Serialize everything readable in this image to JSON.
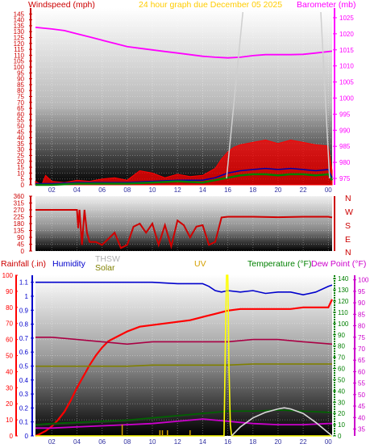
{
  "colors": {
    "wind": "#ff0000",
    "gust": "#ff0000",
    "barometer": "#ff00ff",
    "title": "#ffcc00",
    "direction": "#d00000",
    "rain": "#ff0000",
    "humidity": "#0000cc",
    "solar": "#808000",
    "thsw": "#b0b0b0",
    "uv": "#d4a000",
    "temperature": "#008000",
    "dewpoint": "#cc00cc",
    "uvline": "#ffff00",
    "solarline": "#d8d8d8",
    "rainaxis": "#ff0000"
  },
  "panels": {
    "top": {
      "left_label": "Windspeed (mph)",
      "title": "24 hour graph due   December 05 2025",
      "right_label": "Barometer (mb)"
    },
    "middle": {
      "compass": [
        "N",
        "W",
        "S",
        "E",
        "N"
      ]
    },
    "bottom": {
      "labels": {
        "rainfall": "Rainfall (.in)",
        "humidity": "Humidity",
        "thsw": "THSW",
        "solar": "Solar",
        "uv": "UV",
        "temperature": "Temperature (°F)",
        "dewpoint": "Dew Point (°F)"
      }
    }
  },
  "chart_data": [
    {
      "type": "line",
      "title": "24 hour graph due   December 05 2025",
      "x_ticks": [
        "02",
        "04",
        "06",
        "08",
        "10",
        "12",
        "14",
        "16",
        "18",
        "20",
        "22",
        "00"
      ],
      "xlim": [
        0.7,
        24.3
      ],
      "left_axis": {
        "label": "Windspeed (mph)",
        "ticks": [
          0,
          5,
          10,
          15,
          20,
          25,
          30,
          35,
          40,
          45,
          50,
          55,
          60,
          65,
          70,
          75,
          80,
          85,
          90,
          95,
          100,
          105,
          110,
          115,
          120,
          125,
          130,
          135,
          140,
          145
        ],
        "ylim": [
          0,
          150
        ]
      },
      "right_axis": {
        "label": "Barometer (mb)",
        "ticks": [
          975,
          980,
          985,
          990,
          995,
          1000,
          1005,
          1010,
          1015,
          1020,
          1025
        ],
        "ylim": [
          973,
          1028
        ]
      },
      "series": [
        {
          "name": "Barometer",
          "axis": "right",
          "x": [
            0.7,
            2,
            3,
            4,
            5,
            6,
            7,
            8,
            9,
            10,
            11,
            12,
            13,
            14,
            15,
            16,
            17,
            18,
            19,
            20,
            21,
            22,
            23,
            24.3
          ],
          "values": [
            1022,
            1021.5,
            1021,
            1020,
            1019,
            1018,
            1017,
            1016,
            1015.5,
            1015,
            1014.5,
            1014,
            1013.5,
            1013,
            1012.7,
            1012.5,
            1012.7,
            1013.2,
            1013.5,
            1013.5,
            1013.5,
            1013.6,
            1014,
            1014.6
          ]
        },
        {
          "name": "Gust",
          "axis": "left",
          "x": [
            0.7,
            1.2,
            1.5,
            2,
            3,
            4,
            5,
            6,
            7,
            8,
            9,
            10,
            11,
            12,
            13,
            14,
            15,
            15.5,
            16,
            16.5,
            17,
            18,
            19,
            20,
            21,
            22,
            23,
            24,
            24.3
          ],
          "values": [
            3,
            0,
            8,
            3,
            2,
            4,
            3,
            5,
            6,
            4,
            12,
            10,
            6,
            9,
            7,
            8,
            14,
            22,
            28,
            32,
            34,
            36,
            38,
            35,
            38,
            36,
            34,
            33,
            12
          ]
        },
        {
          "name": "Wind",
          "axis": "left",
          "x": [
            0.7,
            2,
            4,
            6,
            8,
            10,
            12,
            14,
            15,
            16,
            17,
            18,
            19,
            20,
            21,
            22,
            23,
            24,
            24.3
          ],
          "values": [
            1,
            1,
            2,
            2,
            2,
            3,
            4,
            4,
            6,
            10,
            12,
            13,
            14,
            13,
            14,
            13,
            12,
            13,
            6
          ]
        },
        {
          "name": "Direction band",
          "axis": "left",
          "x": [
            0.7,
            2,
            4,
            6,
            8,
            10,
            12,
            14,
            15,
            16,
            17,
            18,
            19,
            20,
            21,
            22,
            23,
            24,
            24.3
          ],
          "values": [
            0,
            0,
            1,
            1,
            1,
            2,
            3,
            2,
            4,
            6,
            8,
            9,
            9,
            8,
            9,
            9,
            8,
            9,
            4
          ]
        }
      ]
    },
    {
      "type": "line",
      "x_ticks": [
        "02",
        "04",
        "06",
        "08",
        "10",
        "12",
        "14",
        "16",
        "18",
        "20",
        "22",
        "00"
      ],
      "xlim": [
        0.7,
        24.3
      ],
      "left_axis": {
        "ticks": [
          0,
          45,
          90,
          135,
          180,
          225,
          270,
          315,
          360
        ],
        "ylim": [
          0,
          360
        ]
      },
      "right_axis": {
        "ticks": [
          "N",
          "W",
          "S",
          "E",
          "N"
        ]
      },
      "series": [
        {
          "name": "Wind direction",
          "x": [
            0.7,
            4,
            4.1,
            4.2,
            4.4,
            4.6,
            4.8,
            5,
            5.5,
            6,
            6.5,
            7,
            7.5,
            8,
            8.5,
            9,
            9.5,
            10,
            10.5,
            11,
            11.5,
            12,
            12.5,
            13,
            13.5,
            14,
            14.5,
            15,
            15.5,
            16,
            18,
            20,
            22,
            24,
            24.3
          ],
          "values": [
            270,
            270,
            150,
            270,
            40,
            270,
            120,
            60,
            60,
            40,
            80,
            120,
            20,
            40,
            160,
            180,
            120,
            180,
            40,
            170,
            30,
            200,
            170,
            90,
            160,
            170,
            40,
            60,
            220,
            225,
            225,
            222,
            225,
            225,
            220
          ]
        }
      ]
    },
    {
      "type": "line",
      "x_ticks": [
        "02",
        "04",
        "06",
        "08",
        "10",
        "12",
        "14",
        "16",
        "18",
        "20",
        "22",
        "00"
      ],
      "xlim": [
        0.7,
        24.3
      ],
      "rain_axis": {
        "label": "Rainfall (.in)",
        "ticks": [
          0,
          10,
          20,
          30,
          40,
          50,
          60,
          70,
          80,
          90,
          100
        ],
        "ylim": [
          0,
          100
        ]
      },
      "humidity_axis": {
        "label": "Humidity",
        "ticks": [
          0,
          0.1,
          0.2,
          0.3,
          0.4,
          0.5,
          0.6,
          0.7,
          0.8,
          0.9,
          1,
          1.1
        ],
        "ylim": [
          0,
          1.15
        ]
      },
      "temp_axis": {
        "label": "Temperature (°F)",
        "ticks": [
          0,
          10,
          20,
          30,
          40,
          50,
          60,
          70,
          80,
          90,
          100,
          110,
          120,
          130,
          140
        ],
        "ylim": [
          0,
          143
        ]
      },
      "dew_axis": {
        "label": "Dew Point (°F)",
        "ticks": [
          35,
          40,
          45,
          50,
          55,
          60,
          65,
          70,
          75,
          80,
          85,
          90,
          95,
          100
        ],
        "ylim": [
          32,
          102
        ]
      },
      "series": [
        {
          "name": "Humidity",
          "axis": "humidity",
          "x": [
            0.7,
            2,
            4,
            6,
            8,
            10,
            12,
            14,
            14.5,
            15,
            15.5,
            16,
            17,
            18,
            19,
            20,
            21,
            22,
            23,
            24,
            24.3
          ],
          "values": [
            1.1,
            1.1,
            1.1,
            1.1,
            1.1,
            1.1,
            1.09,
            1.09,
            1.07,
            1.04,
            1.03,
            1.04,
            1.03,
            1.04,
            1.02,
            1.03,
            1.03,
            1.01,
            1.03,
            1.07,
            1.08
          ]
        },
        {
          "name": "Rainfall",
          "axis": "rain",
          "x": [
            0.7,
            1,
            1.5,
            2,
            2.5,
            3,
            3.5,
            4,
            4.5,
            5,
            5.5,
            6,
            6.5,
            7,
            8,
            9,
            10,
            11,
            12,
            13,
            14,
            15,
            16,
            17,
            18,
            19,
            20,
            21,
            22,
            23,
            24,
            24.3
          ],
          "values": [
            0,
            1,
            3,
            6,
            10,
            15,
            22,
            30,
            37,
            44,
            50,
            55,
            59,
            61,
            65,
            68,
            69,
            70,
            71,
            72,
            74,
            76,
            78,
            79,
            79,
            79,
            79,
            79,
            80,
            80,
            80,
            85
          ]
        },
        {
          "name": "Dew Point",
          "axis": "dewpoint",
          "x": [
            0.7,
            2,
            4,
            6,
            8,
            10,
            12,
            14,
            16,
            18,
            20,
            22,
            24.3
          ],
          "values": [
            75,
            75,
            74,
            73,
            72,
            73,
            73,
            73,
            73,
            74,
            74,
            73,
            72
          ]
        },
        {
          "name": "Solar",
          "axis": "temp",
          "x": [
            0.7,
            2,
            4,
            6,
            8,
            10,
            12,
            14,
            16,
            18,
            20,
            22,
            24.3
          ],
          "values": [
            62,
            62,
            62,
            62,
            62,
            63,
            63,
            63,
            63,
            64,
            64,
            64,
            64
          ]
        },
        {
          "name": "Temperature",
          "axis": "temp",
          "x": [
            0.7,
            2,
            4,
            6,
            8,
            10,
            12,
            14,
            16,
            18,
            20,
            22,
            24,
            24.3
          ],
          "values": [
            10,
            11,
            12,
            13,
            14,
            16,
            18,
            20,
            22,
            22,
            23,
            22,
            21,
            21
          ]
        },
        {
          "name": "THSW",
          "axis": "temp",
          "x": [
            0.7,
            2,
            4,
            6,
            8,
            10,
            12,
            14,
            16,
            18,
            20,
            22,
            24,
            24.3
          ],
          "values": [
            9,
            10,
            11,
            12,
            13,
            15,
            17,
            19,
            21,
            21,
            22,
            21,
            20,
            20
          ]
        },
        {
          "name": "Dew Point (low)",
          "axis": "temp",
          "x": [
            0.7,
            2,
            4,
            6,
            8,
            10,
            12,
            13,
            14,
            15,
            16,
            17,
            18,
            20,
            22,
            24,
            24.3
          ],
          "values": [
            7,
            7,
            8,
            9,
            10,
            11,
            13,
            14,
            15,
            14,
            13,
            12,
            11,
            10,
            10,
            11,
            11
          ]
        },
        {
          "name": "UV",
          "axis": "temp",
          "x": [
            0.7,
            15.7,
            15.8,
            15.9,
            16,
            16.1,
            16.2,
            16.3,
            24.3
          ],
          "values": [
            0,
            0,
            80,
            143,
            143,
            60,
            10,
            0,
            0
          ]
        },
        {
          "name": "Solar radiation",
          "axis": "temp",
          "x": [
            16.3,
            17,
            18,
            19,
            20,
            20.5,
            21,
            22,
            23,
            24.3
          ],
          "values": [
            0,
            8,
            16,
            21,
            24,
            25,
            24,
            20,
            12,
            0
          ]
        }
      ]
    }
  ]
}
